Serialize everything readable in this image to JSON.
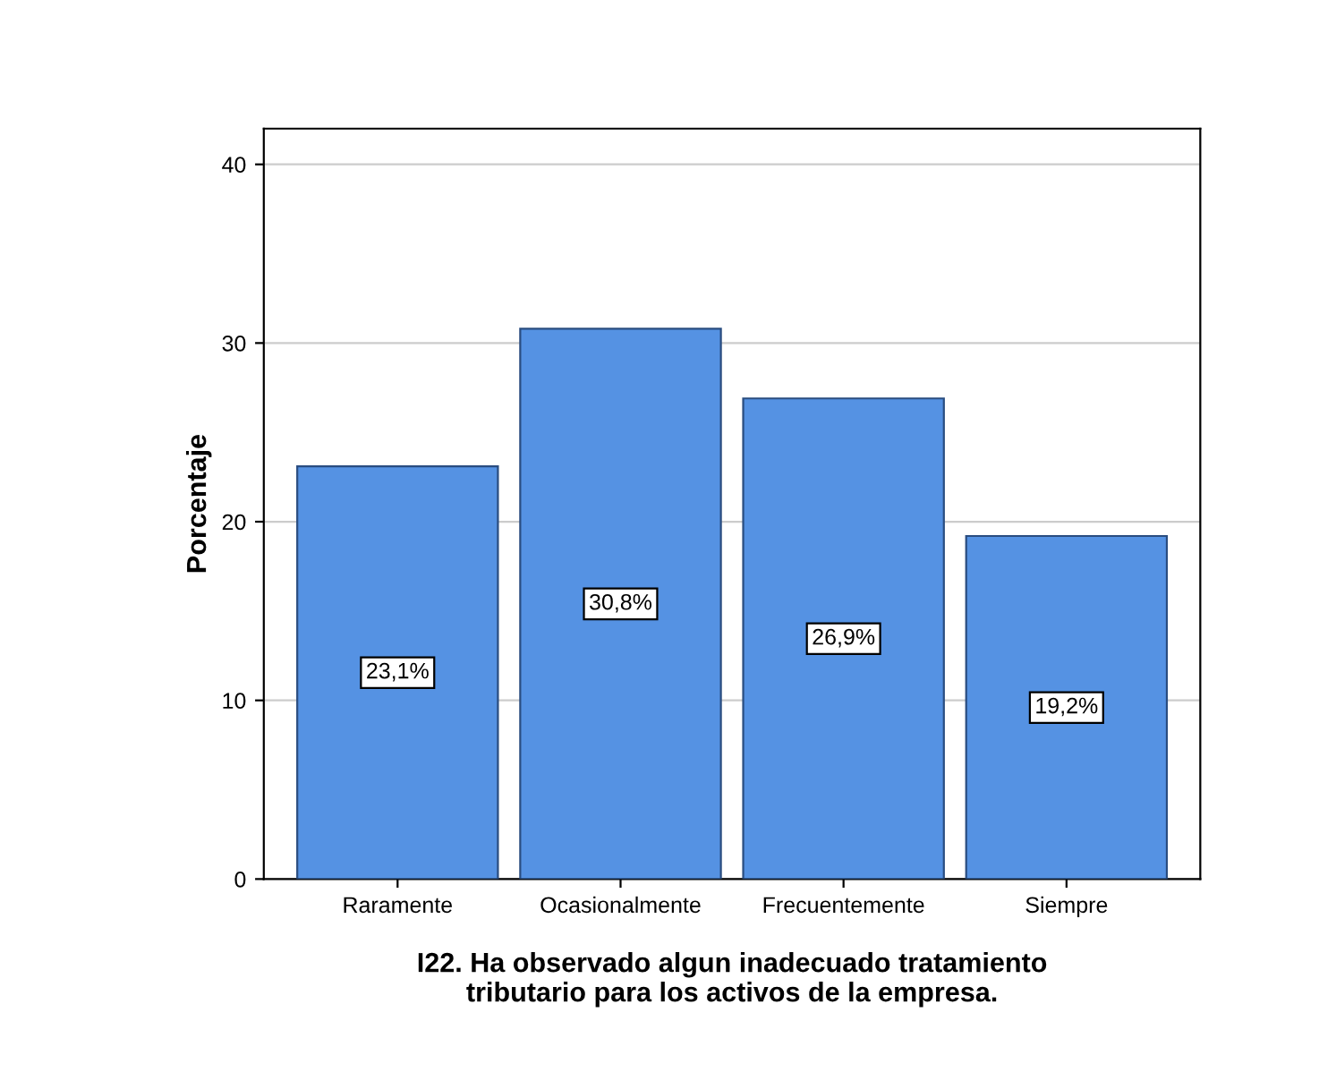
{
  "chart_data": {
    "type": "bar",
    "categories": [
      "Raramente",
      "Ocasionalmente",
      "Frecuentemente",
      "Siempre"
    ],
    "values": [
      23.1,
      30.8,
      26.9,
      19.2
    ],
    "value_labels": [
      "23,1%",
      "30,8%",
      "26,9%",
      "19,2%"
    ],
    "color": "#5592e3",
    "xlabel": "I22. Ha observado algun inadecuado tratamiento\ntributario para los activos de la empresa.",
    "ylabel": "Porcentaje",
    "ylim": [
      0,
      42
    ],
    "yticks": [
      0,
      10,
      20,
      30,
      40
    ],
    "grid": "y"
  }
}
